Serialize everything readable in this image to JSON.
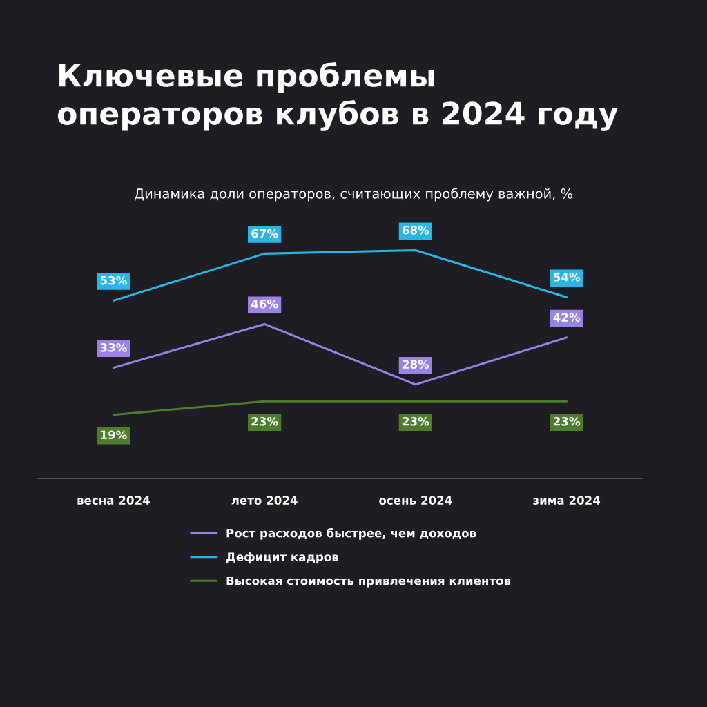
{
  "chart_data": {
    "type": "line",
    "title": "Ключевые проблемы\nоператоров клубов в 2024 году",
    "subtitle": "Динамика доли операторов, считающих проблему важной, %",
    "categories": [
      "весна 2024",
      "лето 2024",
      "осень 2024",
      "зима 2024"
    ],
    "series": [
      {
        "name": "Рост расходов быстрее, чем доходов",
        "color": "#9b82e6",
        "values": [
          33,
          46,
          28,
          42
        ],
        "value_labels": [
          "33%",
          "46%",
          "28%",
          "42%"
        ]
      },
      {
        "name": "Дефицит кадров",
        "color": "#2bb4e4",
        "values": [
          53,
          67,
          68,
          54
        ],
        "value_labels": [
          "53%",
          "67%",
          "68%",
          "54%"
        ]
      },
      {
        "name": "Высокая стоимость привлечения клиентов",
        "color": "#4e7d2c",
        "values": [
          19,
          23,
          23,
          23
        ],
        "value_labels": [
          "19%",
          "23%",
          "23%",
          "23%"
        ]
      }
    ],
    "legend": "bottom",
    "grid": false,
    "marker": "none",
    "line_style": "solid"
  }
}
